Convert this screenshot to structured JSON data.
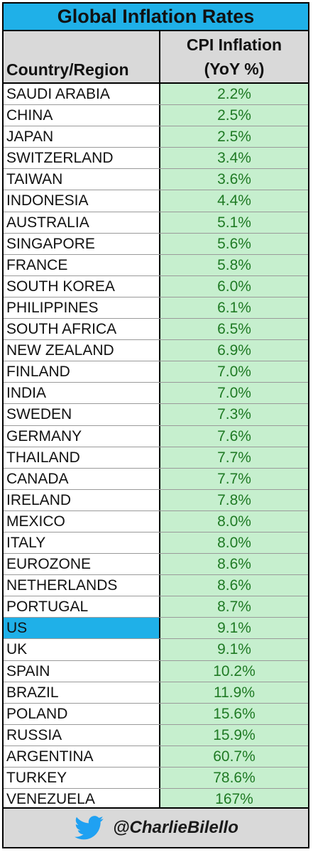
{
  "title": "Global Inflation Rates",
  "header": {
    "col1": "Country/Region",
    "col2_line1": "CPI Inflation",
    "col2_line2": "(YoY %)"
  },
  "colors": {
    "title_bg": "#1fb0e8",
    "header_bg": "#d9d9d9",
    "value_bg": "#c6efce",
    "value_text": "#1f7a24",
    "highlight": "#1fb0e8"
  },
  "highlighted_row": "US",
  "footer": {
    "icon": "twitter-bird-icon",
    "handle": "@CharlieBilello"
  },
  "chart_data": {
    "type": "table",
    "title": "Global Inflation Rates",
    "columns": [
      "Country/Region",
      "CPI Inflation (YoY %)"
    ],
    "rows": [
      {
        "country": "SAUDI ARABIA",
        "value": "2.2%"
      },
      {
        "country": "CHINA",
        "value": "2.5%"
      },
      {
        "country": "JAPAN",
        "value": "2.5%"
      },
      {
        "country": "SWITZERLAND",
        "value": "3.4%"
      },
      {
        "country": "TAIWAN",
        "value": "3.6%"
      },
      {
        "country": "INDONESIA",
        "value": "4.4%"
      },
      {
        "country": "AUSTRALIA",
        "value": "5.1%"
      },
      {
        "country": "SINGAPORE",
        "value": "5.6%"
      },
      {
        "country": "FRANCE",
        "value": "5.8%"
      },
      {
        "country": "SOUTH KOREA",
        "value": "6.0%"
      },
      {
        "country": "PHILIPPINES",
        "value": "6.1%"
      },
      {
        "country": "SOUTH AFRICA",
        "value": "6.5%"
      },
      {
        "country": "NEW ZEALAND",
        "value": "6.9%"
      },
      {
        "country": "FINLAND",
        "value": "7.0%"
      },
      {
        "country": "INDIA",
        "value": "7.0%"
      },
      {
        "country": "SWEDEN",
        "value": "7.3%"
      },
      {
        "country": "GERMANY",
        "value": "7.6%"
      },
      {
        "country": "THAILAND",
        "value": "7.7%"
      },
      {
        "country": "CANADA",
        "value": "7.7%"
      },
      {
        "country": "IRELAND",
        "value": "7.8%"
      },
      {
        "country": "MEXICO",
        "value": "8.0%"
      },
      {
        "country": "ITALY",
        "value": "8.0%"
      },
      {
        "country": "EUROZONE",
        "value": "8.6%"
      },
      {
        "country": "NETHERLANDS",
        "value": "8.6%"
      },
      {
        "country": "PORTUGAL",
        "value": "8.7%"
      },
      {
        "country": "US",
        "value": "9.1%"
      },
      {
        "country": "UK",
        "value": "9.1%"
      },
      {
        "country": "SPAIN",
        "value": "10.2%"
      },
      {
        "country": "BRAZIL",
        "value": "11.9%"
      },
      {
        "country": "POLAND",
        "value": "15.6%"
      },
      {
        "country": "RUSSIA",
        "value": "15.9%"
      },
      {
        "country": "ARGENTINA",
        "value": "60.7%"
      },
      {
        "country": "TURKEY",
        "value": "78.6%"
      },
      {
        "country": "VENEZUELA",
        "value": "167%"
      }
    ]
  }
}
